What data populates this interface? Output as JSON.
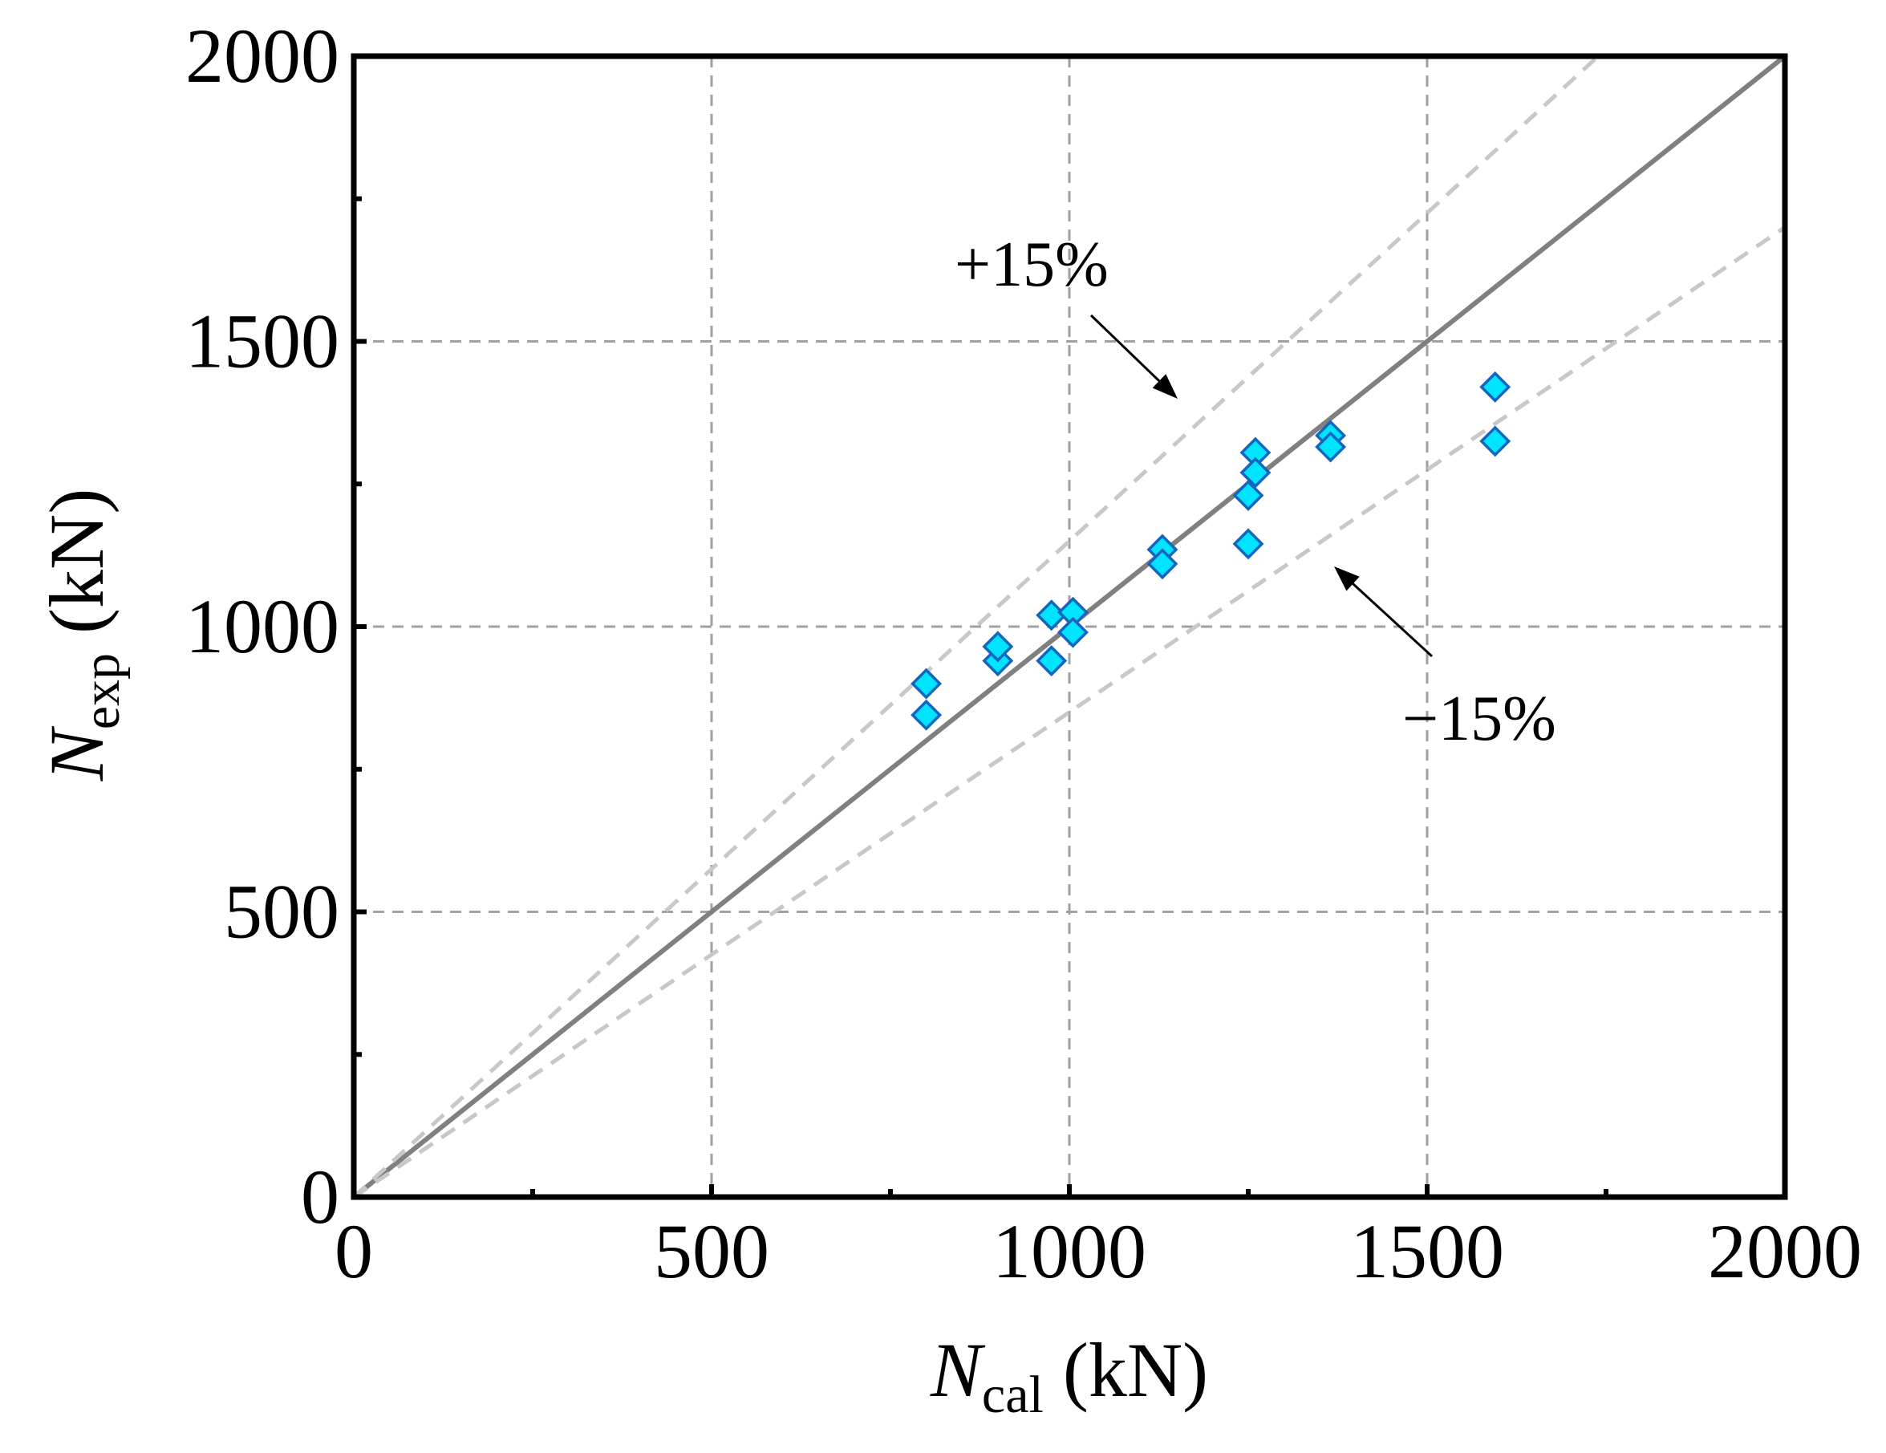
{
  "chart_data": {
    "type": "scatter",
    "title": "",
    "xlabel": {
      "symbol": "N",
      "subscript": "cal",
      "unit": "(kN)"
    },
    "ylabel": {
      "symbol": "N",
      "subscript": "exp",
      "unit": "(kN)"
    },
    "xlim": [
      0,
      2000
    ],
    "ylim": [
      0,
      2000
    ],
    "xticks": [
      0,
      500,
      1000,
      1500,
      2000
    ],
    "yticks": [
      0,
      500,
      1000,
      1500,
      2000
    ],
    "x_tick_labels": [
      "0",
      "500",
      "1000",
      "1500",
      "2000"
    ],
    "y_tick_labels": [
      "0",
      "500",
      "1000",
      "1500",
      "2000"
    ],
    "grid": true,
    "reference_lines": [
      {
        "name": "equality",
        "slope": 1.0,
        "style": "solid"
      },
      {
        "name": "plus-15",
        "slope": 1.15,
        "style": "dashed",
        "label": "+15%"
      },
      {
        "name": "minus-15",
        "slope": 0.85,
        "style": "dashed",
        "label": "−15%"
      }
    ],
    "series": [
      {
        "name": "specimens",
        "marker": "diamond",
        "points": [
          {
            "x": 800,
            "y": 900
          },
          {
            "x": 800,
            "y": 845
          },
          {
            "x": 900,
            "y": 940
          },
          {
            "x": 900,
            "y": 965
          },
          {
            "x": 975,
            "y": 1020
          },
          {
            "x": 975,
            "y": 940
          },
          {
            "x": 1005,
            "y": 1025
          },
          {
            "x": 1005,
            "y": 990
          },
          {
            "x": 1130,
            "y": 1135
          },
          {
            "x": 1130,
            "y": 1110
          },
          {
            "x": 1260,
            "y": 1305
          },
          {
            "x": 1260,
            "y": 1270
          },
          {
            "x": 1250,
            "y": 1230
          },
          {
            "x": 1250,
            "y": 1145
          },
          {
            "x": 1365,
            "y": 1335
          },
          {
            "x": 1365,
            "y": 1315
          },
          {
            "x": 1595,
            "y": 1420
          },
          {
            "x": 1595,
            "y": 1325
          }
        ]
      }
    ]
  },
  "colors": {
    "marker_fill": "#00E5FF",
    "marker_edge": "#1565C0",
    "equality_line": "#808080",
    "band_line": "#C8C8C8",
    "grid": "#A0A0A0",
    "axis": "#000000"
  }
}
